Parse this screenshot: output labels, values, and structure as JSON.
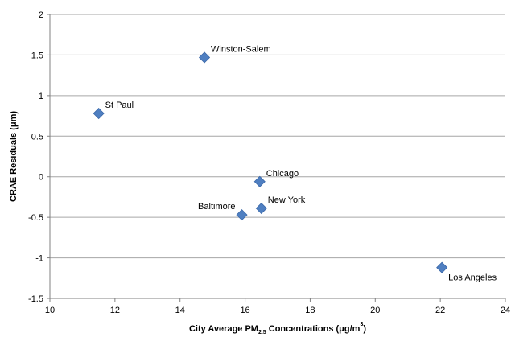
{
  "chart_data": {
    "type": "scatter",
    "title": "",
    "xlabel": "City Average PM2.5 Concentrations (μg/m3)",
    "xlabel_parts": [
      "City Average PM",
      "2.5",
      " Concentrations (μg/m",
      "3",
      ")"
    ],
    "ylabel": "CRAE Residuals (μm)",
    "xlim": [
      10,
      24
    ],
    "ylim": [
      -1.5,
      2
    ],
    "xticks": [
      10,
      12,
      14,
      16,
      18,
      20,
      22,
      24
    ],
    "yticks": [
      -1.5,
      -1,
      -0.5,
      0,
      0.5,
      1,
      1.5,
      2
    ],
    "xtick_labels": [
      "10",
      "12",
      "14",
      "16",
      "18",
      "20",
      "22",
      "24"
    ],
    "ytick_labels": [
      "-1.5",
      "-1",
      "-0.5",
      "0",
      "0.5",
      "1",
      "1.5",
      "2"
    ],
    "grid": "horizontal",
    "marker_color": "#4F7FC1",
    "points": [
      {
        "label": "Winston-Salem",
        "x": 14.75,
        "y": 1.47,
        "label_pos": "upper-right"
      },
      {
        "label": "St Paul",
        "x": 11.5,
        "y": 0.78,
        "label_pos": "upper-right"
      },
      {
        "label": "Chicago",
        "x": 16.45,
        "y": -0.06,
        "label_pos": "upper-right"
      },
      {
        "label": "New York",
        "x": 16.5,
        "y": -0.39,
        "label_pos": "upper-right"
      },
      {
        "label": "Baltimore",
        "x": 15.9,
        "y": -0.47,
        "label_pos": "upper-left"
      },
      {
        "label": "Los Angeles",
        "x": 22.05,
        "y": -1.12,
        "label_pos": "lower-right"
      }
    ]
  }
}
